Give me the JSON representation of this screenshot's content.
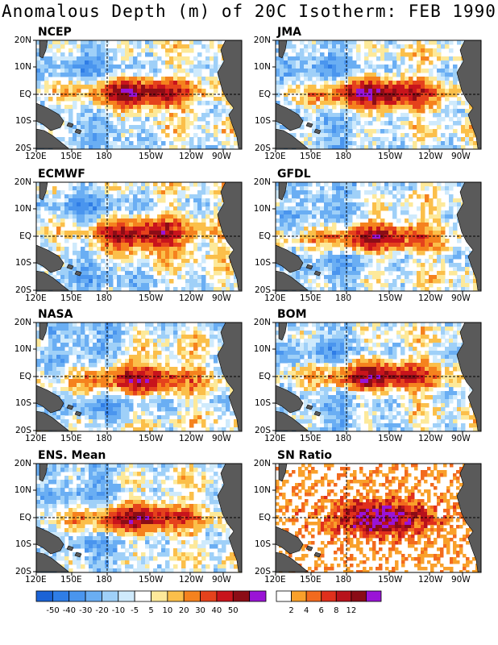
{
  "title": "Anomalous Depth (m) of 20C Isotherm: FEB 1990",
  "panels": [
    {
      "id": "ncep",
      "title": "NCEP"
    },
    {
      "id": "jma",
      "title": "JMA"
    },
    {
      "id": "ecmwf",
      "title": "ECMWF"
    },
    {
      "id": "gfdl",
      "title": "GFDL"
    },
    {
      "id": "nasa",
      "title": "NASA"
    },
    {
      "id": "bom",
      "title": "BOM"
    },
    {
      "id": "ens",
      "title": "ENS. Mean"
    },
    {
      "id": "sn",
      "title": "SN Ratio"
    }
  ],
  "axes": {
    "lat_labels": [
      "20N",
      "10N",
      "EQ",
      "10S",
      "20S"
    ],
    "lon_labels": [
      "120E",
      "150E",
      "180",
      "150W",
      "120W",
      "90W"
    ]
  },
  "colorbar_anomaly": {
    "labels": [
      "-50",
      "-40",
      "-30",
      "-20",
      "-10",
      "-5",
      "5",
      "10",
      "20",
      "30",
      "40",
      "50"
    ],
    "colors": [
      "#1b63d6",
      "#2f7de6",
      "#4a95ee",
      "#6aaef3",
      "#9fd0f8",
      "#cfeafc",
      "#ffffff",
      "#fde99a",
      "#fbbf4a",
      "#f5821e",
      "#e5421c",
      "#c8141c",
      "#8c0d16",
      "#9a14d6"
    ]
  },
  "colorbar_snr": {
    "labels": [
      "2",
      "4",
      "6",
      "8",
      "12"
    ],
    "colors": [
      "#ffffff",
      "#f9a02b",
      "#f26a1e",
      "#e0301c",
      "#b8121c",
      "#8a0c16",
      "#9a14d6"
    ]
  },
  "colors": {
    "land": "#5a5a5a",
    "background": "#ffffff",
    "reference_line": "#000000"
  }
}
